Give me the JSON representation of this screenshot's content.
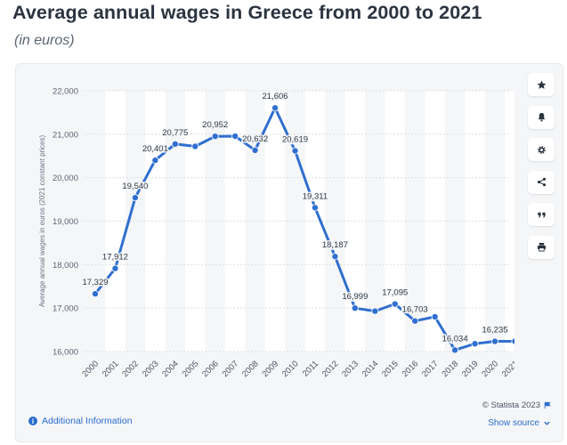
{
  "header": {
    "title": "Average annual wages in Greece from 2000 to 2021",
    "subtitle": "(in euros)"
  },
  "toolbar": {
    "icons": [
      "star-icon",
      "bell-icon",
      "gear-icon",
      "share-icon",
      "quote-icon",
      "print-icon"
    ]
  },
  "footer": {
    "additional_info": "Additional Information",
    "copyright": "© Statista 2023",
    "show_source": "Show source"
  },
  "colors": {
    "line": "#2f6fcf",
    "accent": "#2a6ecc",
    "card_bg": "#f5f6f8"
  },
  "chart_data": {
    "type": "line",
    "title": "Average annual wages in Greece from 2000 to 2021",
    "subtitle": "(in euros)",
    "xlabel": "",
    "ylabel": "Average annual wages in euros (2021 constant prices)",
    "ylim": [
      16000,
      22000
    ],
    "yticks": [
      16000,
      17000,
      18000,
      19000,
      20000,
      21000,
      22000
    ],
    "ytick_labels": [
      "16,000",
      "17,000",
      "18,000",
      "19,000",
      "20,000",
      "21,000",
      "22,000"
    ],
    "grid": true,
    "categories": [
      "2000",
      "2001",
      "2002",
      "2003",
      "2004",
      "2005",
      "2006",
      "2007",
      "2008",
      "2009",
      "2010",
      "2011",
      "2012",
      "2013",
      "2014",
      "2015",
      "2016",
      "2017",
      "2018",
      "2019",
      "2020",
      "2021"
    ],
    "series": [
      {
        "name": "",
        "values": [
          17329,
          17912,
          19540,
          20401,
          20775,
          20720,
          20952,
          20955,
          20632,
          21606,
          20619,
          19311,
          18187,
          16999,
          16930,
          17095,
          16703,
          16800,
          16034,
          16180,
          16235,
          16235
        ],
        "labels": [
          "17,329",
          "17,912",
          "19,540",
          "20,401",
          "20,775",
          "",
          "20,952",
          "",
          "20,632",
          "21,606",
          "20,619",
          "19,311",
          "18,187",
          "16,999",
          "",
          "17,095",
          "16,703",
          "",
          "16,034",
          "",
          "16,235",
          ""
        ]
      }
    ]
  }
}
